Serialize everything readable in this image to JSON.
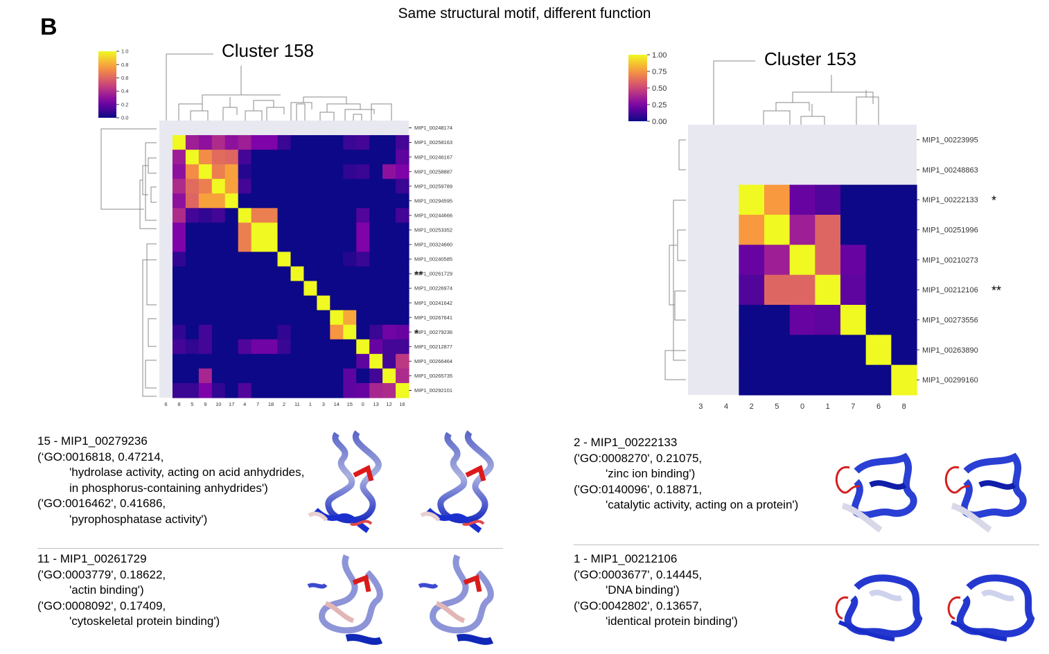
{
  "figure": {
    "title": "Same structural motif, different function",
    "panel_label": "B"
  },
  "chart_data": [
    {
      "type": "heatmap",
      "title": "Cluster 158",
      "colormap": "plasma",
      "colorbar_ticks": [
        "1.0",
        "0.8",
        "0.6",
        "0.4",
        "0.2",
        "0.0"
      ],
      "vmin": 0.0,
      "vmax": 1.0,
      "x_labels": [
        "6",
        "8",
        "5",
        "9",
        "10",
        "17",
        "4",
        "7",
        "18",
        "2",
        "11",
        "1",
        "3",
        "14",
        "15",
        "0",
        "13",
        "12",
        "16"
      ],
      "y_labels": [
        "MIP1_00248174",
        "MIP1_00258163",
        "MIP1_00246167",
        "MIP1_00258887",
        "MIP1_00259789",
        "MIP1_00294595",
        "MIP1_00244666",
        "MIP1_00253352",
        "MIP1_00324660",
        "MIP1_00240585",
        "MIP1_00261729",
        "MIP1_00226974",
        "MIP1_00241642",
        "MIP1_00267641",
        "MIP1_00279236",
        "MIP1_00212877",
        "MIP1_00266464",
        "MIP1_00265735",
        "MIP1_00292101"
      ],
      "markers": [
        {
          "row": 10,
          "text": "**"
        },
        {
          "row": 14,
          "text": "*"
        }
      ],
      "values": [
        [
          null,
          null,
          null,
          null,
          null,
          null,
          null,
          null,
          null,
          null,
          null,
          null,
          null,
          null,
          null,
          null,
          null,
          null,
          null
        ],
        [
          null,
          1.0,
          0.35,
          0.3,
          0.4,
          0.3,
          0.35,
          0.25,
          0.25,
          0.1,
          0,
          0,
          0,
          0,
          0.1,
          0.12,
          0,
          0,
          0.12
        ],
        [
          null,
          0.35,
          1.0,
          0.72,
          0.62,
          0.6,
          0.12,
          0,
          0,
          0,
          0,
          0,
          0,
          0,
          0,
          0,
          0,
          0,
          0.18
        ],
        [
          null,
          0.3,
          0.72,
          1.0,
          0.68,
          0.78,
          0.05,
          0,
          0,
          0,
          0,
          0,
          0,
          0,
          0.08,
          0.1,
          0,
          0.3,
          0.25
        ],
        [
          null,
          0.4,
          0.62,
          0.68,
          1.0,
          0.78,
          0.12,
          0,
          0,
          0,
          0,
          0,
          0,
          0,
          0,
          0,
          0,
          0,
          0.1
        ],
        [
          null,
          0.3,
          0.6,
          0.78,
          0.78,
          1.0,
          0,
          0,
          0,
          0,
          0,
          0,
          0,
          0,
          0,
          0,
          0,
          0,
          0
        ],
        [
          null,
          0.4,
          0.12,
          0.08,
          0.12,
          0,
          1.0,
          0.68,
          0.68,
          0,
          0,
          0,
          0,
          0,
          0,
          0.15,
          0,
          0,
          0.12
        ],
        [
          null,
          0.25,
          0,
          0,
          0,
          0,
          0.68,
          1.0,
          1.0,
          0,
          0,
          0,
          0,
          0,
          0,
          0.25,
          0,
          0,
          0
        ],
        [
          null,
          0.25,
          0,
          0,
          0,
          0,
          0.68,
          1.0,
          1.0,
          0,
          0,
          0,
          0,
          0,
          0,
          0.25,
          0,
          0,
          0
        ],
        [
          null,
          0.08,
          0,
          0,
          0,
          0,
          0,
          0,
          0,
          1.0,
          0,
          0,
          0,
          0,
          0.05,
          0.1,
          0,
          0,
          0
        ],
        [
          null,
          0,
          0,
          0,
          0,
          0,
          0,
          0,
          0,
          0,
          1.0,
          0,
          0,
          0,
          0,
          0,
          0,
          0,
          0
        ],
        [
          null,
          0,
          0,
          0,
          0,
          0,
          0,
          0,
          0,
          0,
          0,
          1.0,
          0,
          0,
          0,
          0,
          0,
          0,
          0
        ],
        [
          null,
          0,
          0,
          0,
          0,
          0,
          0,
          0,
          0,
          0,
          0,
          0,
          1.0,
          0,
          0,
          0,
          0,
          0,
          0
        ],
        [
          null,
          0,
          0,
          0,
          0,
          0,
          0,
          0,
          0,
          0,
          0,
          0,
          0,
          1.0,
          0.8,
          0,
          0,
          0,
          0
        ],
        [
          null,
          0.08,
          0,
          0.12,
          0,
          0,
          0,
          0,
          0,
          0.08,
          0,
          0,
          0,
          0.75,
          1.0,
          0,
          0.1,
          0.22,
          0.2
        ],
        [
          null,
          0.12,
          0.08,
          0.12,
          0,
          0,
          0.15,
          0.22,
          0.22,
          0.1,
          0,
          0,
          0,
          0,
          0,
          1.0,
          0.2,
          0.12,
          0.12
        ],
        [
          null,
          0,
          0,
          0,
          0,
          0,
          0,
          0,
          0,
          0,
          0,
          0,
          0,
          0,
          0,
          0.18,
          1.0,
          0.12,
          0.45
        ],
        [
          null,
          0,
          0,
          0.38,
          0,
          0,
          0,
          0,
          0,
          0,
          0,
          0,
          0,
          0,
          0.18,
          0,
          0.12,
          1.0,
          0.4
        ],
        [
          null,
          0.1,
          0.1,
          0.25,
          0.08,
          0,
          0.15,
          0,
          0,
          0,
          0,
          0,
          0,
          0,
          0.18,
          0.2,
          0.38,
          0.4,
          1.0
        ]
      ]
    },
    {
      "type": "heatmap",
      "title": "Cluster 153",
      "colormap": "plasma",
      "colorbar_ticks": [
        "1.00",
        "0.75",
        "0.50",
        "0.25",
        "0.00"
      ],
      "vmin": 0.0,
      "vmax": 1.0,
      "x_labels": [
        "3",
        "4",
        "2",
        "5",
        "0",
        "1",
        "7",
        "6",
        "8"
      ],
      "y_labels": [
        "MIP1_00223995",
        "MIP1_00248863",
        "MIP1_00222133",
        "MIP1_00251996",
        "MIP1_00210273",
        "MIP1_00212106",
        "MIP1_00273556",
        "MIP1_00263890",
        "MIP1_00299160"
      ],
      "markers": [
        {
          "row": 2,
          "text": "*"
        },
        {
          "row": 5,
          "text": "**"
        }
      ],
      "values": [
        [
          null,
          null,
          null,
          null,
          null,
          null,
          null,
          null,
          null
        ],
        [
          null,
          null,
          null,
          null,
          null,
          null,
          null,
          null,
          null
        ],
        [
          null,
          null,
          1.0,
          0.76,
          0.2,
          0.15,
          0,
          0,
          0
        ],
        [
          null,
          null,
          0.76,
          1.0,
          0.35,
          0.6,
          0,
          0,
          0
        ],
        [
          null,
          null,
          0.2,
          0.35,
          1.0,
          0.6,
          0.2,
          0,
          0
        ],
        [
          null,
          null,
          0.15,
          0.6,
          0.6,
          1.0,
          0.18,
          0,
          0
        ],
        [
          null,
          null,
          0,
          0,
          0.2,
          0.18,
          1.0,
          0,
          0
        ],
        [
          null,
          null,
          0,
          0,
          0,
          0,
          0,
          1.0,
          0
        ],
        [
          null,
          null,
          0,
          0,
          0,
          0,
          0,
          0,
          1.0
        ]
      ]
    }
  ],
  "annotations": {
    "left_top": {
      "header": "15 - MIP1_00279236",
      "lines": [
        "(‘GO:0016818, 0.47214,",
        "'hydrolase activity, acting on acid anhydrides,",
        "in phosphorus-containing anhydrides')",
        "('GO:0016462', 0.41686,",
        "'pyrophosphatase activity')"
      ]
    },
    "left_bottom": {
      "header": "11 - MIP1_00261729",
      "lines": [
        "('GO:0003779', 0.18622,",
        "'actin binding')",
        "('GO:0008092', 0.17409,",
        "'cytoskeletal protein binding')"
      ]
    },
    "right_top": {
      "header": "2 - MIP1_00222133",
      "lines": [
        "('GO:0008270', 0.21075,",
        "'zinc ion binding')",
        "('GO:0140096', 0.18871,",
        "'catalytic activity, acting on a protein')"
      ]
    },
    "right_bottom": {
      "header": "1 - MIP1_00212106",
      "lines": [
        "('GO:0003677', 0.14445,",
        "'DNA binding')",
        "('GO:0042802', 0.13657,",
        "'identical protein binding')"
      ]
    }
  },
  "colors": {
    "missing": "#e8e8f0",
    "dendrogram": "#8a8a8a",
    "divider": "#bdbdbd"
  }
}
